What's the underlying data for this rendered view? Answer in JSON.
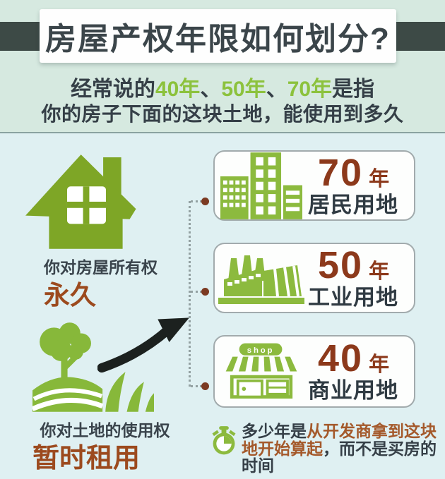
{
  "colors": {
    "background_top": "#d6e9e0",
    "background_bottom": "#dff0f2",
    "header_bar": "#3d4a46",
    "title_text": "#3b454a",
    "dark_text": "#353f47",
    "year_green_text": "#8cc23d",
    "house_icon_green": "#7ea626",
    "icon_green": "#8cba3e",
    "number_brown": "#8c391b",
    "value_brown": "#9c4a1e",
    "footnote_brown": "#a4592b",
    "box_border": "#a2abad",
    "connector_dot_brown": "#7b3a22",
    "arrow_black": "#1c211f"
  },
  "header": {
    "title": "房屋产权年限如何划分?"
  },
  "subtitle": {
    "line1": [
      {
        "text": "经常说的",
        "color": "dark"
      },
      {
        "text": "40年",
        "color": "green"
      },
      {
        "text": "、",
        "color": "dark"
      },
      {
        "text": "50年",
        "color": "green"
      },
      {
        "text": "、",
        "color": "dark"
      },
      {
        "text": "70年",
        "color": "green"
      },
      {
        "text": "是指",
        "color": "dark"
      }
    ],
    "line2": "你的房子下面的这块土地，能使用到多久"
  },
  "ownership": {
    "house": {
      "label": "你对房屋所有权",
      "value": "永久"
    },
    "land": {
      "label": "你对土地的使用权",
      "value": "暂时租用"
    }
  },
  "land_types": [
    {
      "years": "70",
      "unit": "年",
      "label": "居民用地"
    },
    {
      "years": "50",
      "unit": "年",
      "label": "工业用地"
    },
    {
      "years": "40",
      "unit": "年",
      "label": "商业用地",
      "sign": "shop"
    }
  ],
  "footnote": {
    "segments": [
      {
        "text": "多少年是",
        "color": "dark"
      },
      {
        "text": "从开发商拿到这块地开始算起",
        "color": "brown"
      },
      {
        "text": "，而不是买房的时间",
        "color": "dark"
      }
    ]
  }
}
